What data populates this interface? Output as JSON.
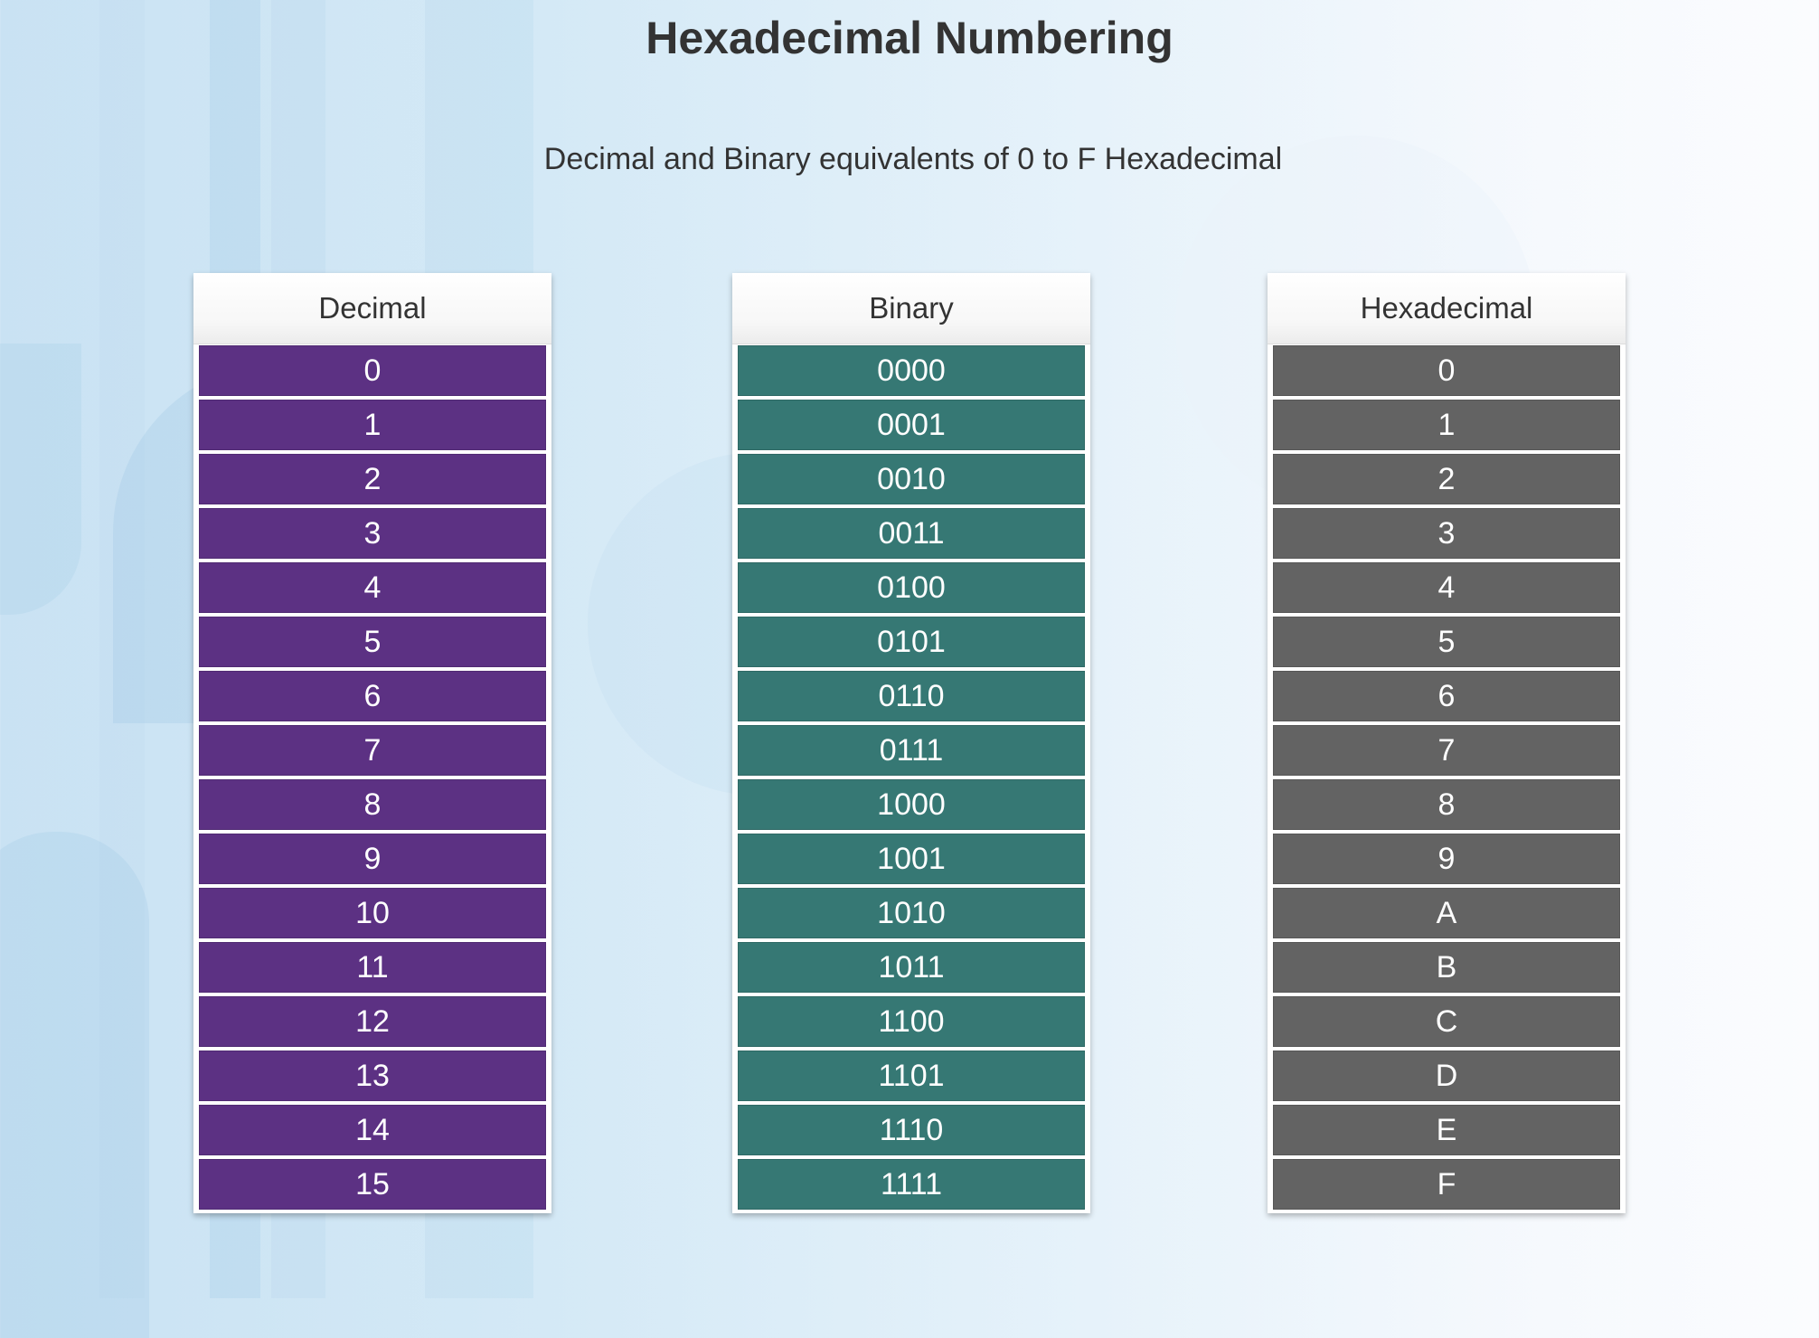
{
  "title": "Hexadecimal Numbering",
  "subtitle": "Decimal and Binary equivalents of 0 to F Hexadecimal",
  "colors": {
    "decimal": "#5c3183",
    "binary": "#367874",
    "hexadecimal": "#636363"
  },
  "columns": [
    {
      "header": "Decimal",
      "values": [
        "0",
        "1",
        "2",
        "3",
        "4",
        "5",
        "6",
        "7",
        "8",
        "9",
        "10",
        "11",
        "12",
        "13",
        "14",
        "15"
      ]
    },
    {
      "header": "Binary",
      "values": [
        "0000",
        "0001",
        "0010",
        "0011",
        "0100",
        "0101",
        "0110",
        "0111",
        "1000",
        "1001",
        "1010",
        "1011",
        "1100",
        "1101",
        "1110",
        "1111"
      ]
    },
    {
      "header": "Hexadecimal",
      "values": [
        "0",
        "1",
        "2",
        "3",
        "4",
        "5",
        "6",
        "7",
        "8",
        "9",
        "A",
        "B",
        "C",
        "D",
        "E",
        "F"
      ]
    }
  ]
}
